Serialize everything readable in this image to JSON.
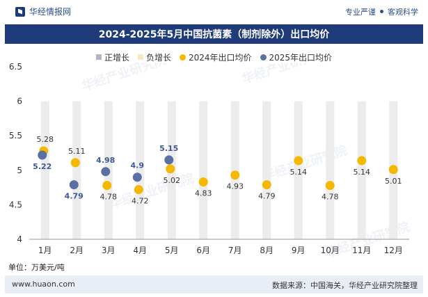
{
  "header": {
    "brand": "华经情报网",
    "slogan_left": "专业严谨",
    "slogan_right": "客观科学"
  },
  "title": "2024-2025年5月中国抗菌素（制剂除外）出口均价",
  "legend": {
    "items": [
      {
        "label": "正增长",
        "color": "#aeb6c2",
        "shape": "rect"
      },
      {
        "label": "负增长",
        "color": "#f7e9bf",
        "shape": "rect"
      },
      {
        "label": "2024年出口均价",
        "color": "#f5b800",
        "shape": "circle"
      },
      {
        "label": "2025年出口均价",
        "color": "#5a6fa3",
        "shape": "circle"
      }
    ]
  },
  "unit_label": "单位：万美元/吨",
  "footer": {
    "website": "www.huaon.com",
    "source": "数据来源：中国海关，华经产业研究院整理"
  },
  "watermark": {
    "cn": "华经产业研究院",
    "en": "www.huaon.com"
  },
  "chart_data": {
    "type": "scatter",
    "categories": [
      "1月",
      "2月",
      "3月",
      "4月",
      "5月",
      "6月",
      "7月",
      "8月",
      "9月",
      "10月",
      "11月",
      "12月"
    ],
    "ylim": [
      4,
      6.5
    ],
    "yticks": [
      "4",
      "4.5",
      "5",
      "5.5",
      "6",
      "6.5"
    ],
    "background_bars": {
      "series_color": "#ececec",
      "values": [
        6,
        6,
        6,
        6,
        6,
        6,
        6,
        6,
        6,
        6,
        6,
        6
      ]
    },
    "series": [
      {
        "name": "2024年出口均价",
        "color": "#f5b800",
        "values": [
          5.28,
          5.11,
          4.78,
          4.72,
          5.02,
          4.83,
          4.93,
          4.79,
          5.14,
          4.78,
          5.14,
          5.01
        ],
        "labels": [
          "5.28",
          "5.11",
          "4.78",
          "4.72",
          "5.02",
          "4.83",
          "4.93",
          "4.79",
          "5.14",
          "4.78",
          "5.14",
          "5.01"
        ]
      },
      {
        "name": "2025年出口均价",
        "color": "#5a6fa3",
        "label_color": "#3f5a96",
        "values": [
          5.22,
          4.79,
          4.98,
          4.9,
          5.15,
          null,
          null,
          null,
          null,
          null,
          null,
          null
        ],
        "labels": [
          "5.22",
          "4.79",
          "4.98",
          "4.9",
          "5.15",
          "",
          "",
          "",
          "",
          "",
          "",
          ""
        ]
      }
    ],
    "grid": false
  }
}
